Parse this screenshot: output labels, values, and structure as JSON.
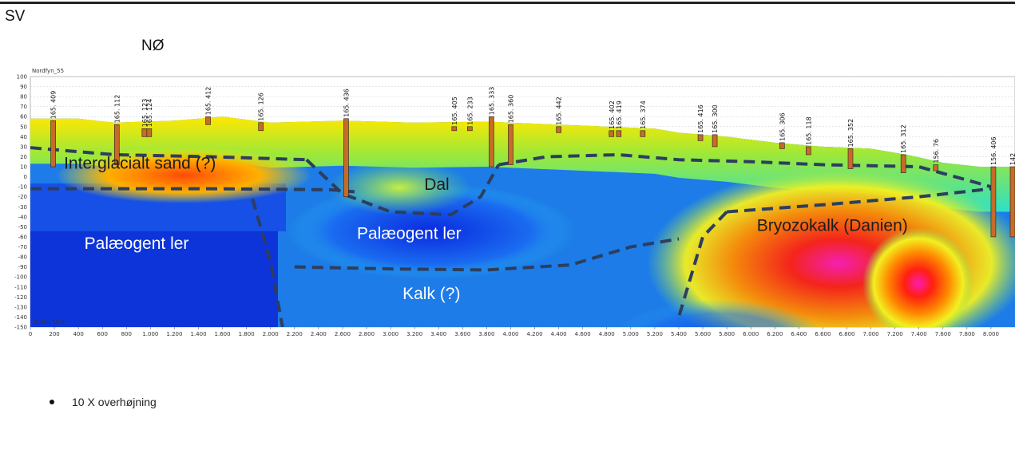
{
  "header": {
    "left_direction": "SV",
    "right_direction": "NØ"
  },
  "footnote": "10 X overhøjning",
  "chart_data": {
    "type": "heatmap",
    "title": "Nordfyn_55",
    "scale_label": "Scale: 10.0",
    "xlim": [
      0,
      8200
    ],
    "ylim": [
      -150,
      100
    ],
    "x_ticks": [
      0,
      200,
      400,
      600,
      800,
      1000,
      1200,
      1400,
      1600,
      1800,
      2000,
      2200,
      2400,
      2600,
      2800,
      3000,
      3200,
      3400,
      3600,
      3800,
      4000,
      4200,
      4400,
      4600,
      4800,
      5000,
      5200,
      5400,
      5600,
      5800,
      6000,
      6200,
      6400,
      6600,
      6800,
      7000,
      7200,
      7400,
      7600,
      7800,
      8000
    ],
    "x_tick_labels": [
      "0",
      "200",
      "400",
      "600",
      "800",
      "1.000",
      "1.200",
      "1.400",
      "1.600",
      "1.800",
      "2.000",
      "2.200",
      "2.400",
      "2.600",
      "2.800",
      "3.000",
      "3.200",
      "3.400",
      "3.600",
      "3.800",
      "4.000",
      "4.200",
      "4.400",
      "4.600",
      "4.800",
      "5.000",
      "5.200",
      "5.400",
      "5.600",
      "5.800",
      "6.000",
      "6.200",
      "6.400",
      "6.600",
      "6.800",
      "7.000",
      "7.200",
      "7.400",
      "7.600",
      "7.800",
      "8.000"
    ],
    "y_ticks": [
      100,
      90,
      80,
      70,
      60,
      50,
      40,
      30,
      20,
      10,
      0,
      -10,
      -20,
      -30,
      -40,
      -50,
      -60,
      -70,
      -80,
      -90,
      -100,
      -110,
      -120,
      -130,
      -140,
      -150
    ],
    "grid": true,
    "terrain_profile": [
      [
        0,
        58
      ],
      [
        400,
        58
      ],
      [
        700,
        54
      ],
      [
        1200,
        56
      ],
      [
        1600,
        60
      ],
      [
        2000,
        54
      ],
      [
        2600,
        56
      ],
      [
        3200,
        54
      ],
      [
        3800,
        55
      ],
      [
        4400,
        52
      ],
      [
        4800,
        50
      ],
      [
        5200,
        48
      ],
      [
        5400,
        44
      ],
      [
        5800,
        40
      ],
      [
        6200,
        34
      ],
      [
        6600,
        30
      ],
      [
        7000,
        28
      ],
      [
        7300,
        22
      ],
      [
        7600,
        14
      ],
      [
        7900,
        10
      ],
      [
        8200,
        10
      ]
    ],
    "boreholes": [
      {
        "label": "165. 409",
        "x": 190,
        "top": 56,
        "bottom": 10
      },
      {
        "label": "165. 112",
        "x": 720,
        "top": 52,
        "bottom": 12
      },
      {
        "label": "165. 123",
        "x": 950,
        "top": 48,
        "bottom": 40
      },
      {
        "label": "165. 124",
        "x": 990,
        "top": 48,
        "bottom": 40
      },
      {
        "label": "165. 412",
        "x": 1480,
        "top": 60,
        "bottom": 52
      },
      {
        "label": "165. 126",
        "x": 1920,
        "top": 54,
        "bottom": 46
      },
      {
        "label": "165. 436",
        "x": 2630,
        "top": 58,
        "bottom": -20
      },
      {
        "label": "165. 405",
        "x": 3530,
        "top": 50,
        "bottom": 46
      },
      {
        "label": "165. 233",
        "x": 3660,
        "top": 50,
        "bottom": 46
      },
      {
        "label": "165. 333",
        "x": 3840,
        "top": 60,
        "bottom": 10
      },
      {
        "label": "165. 360",
        "x": 4000,
        "top": 52,
        "bottom": 12
      },
      {
        "label": "165. 442",
        "x": 4400,
        "top": 50,
        "bottom": 44
      },
      {
        "label": "165. 402",
        "x": 4840,
        "top": 46,
        "bottom": 40
      },
      {
        "label": "165. 419",
        "x": 4900,
        "top": 46,
        "bottom": 40
      },
      {
        "label": "165. 374",
        "x": 5100,
        "top": 46,
        "bottom": 40
      },
      {
        "label": "165. 416",
        "x": 5580,
        "top": 42,
        "bottom": 36
      },
      {
        "label": "165. 300",
        "x": 5700,
        "top": 42,
        "bottom": 30
      },
      {
        "label": "165. 306",
        "x": 6260,
        "top": 34,
        "bottom": 28
      },
      {
        "label": "165. 118",
        "x": 6480,
        "top": 30,
        "bottom": 22
      },
      {
        "label": "165. 352",
        "x": 6830,
        "top": 28,
        "bottom": 8
      },
      {
        "label": "165. 312",
        "x": 7270,
        "top": 22,
        "bottom": 4
      },
      {
        "label": "156. 76",
        "x": 7540,
        "top": 12,
        "bottom": 6
      },
      {
        "label": "156. 406",
        "x": 8020,
        "top": 10,
        "bottom": -60
      },
      {
        "label": "142",
        "x": 8180,
        "top": 10,
        "bottom": -60
      }
    ],
    "interpretation_lines": [
      {
        "name": "interglacial-top",
        "points": [
          [
            0,
            29
          ],
          [
            700,
            22
          ],
          [
            1500,
            20
          ],
          [
            2300,
            17
          ]
        ]
      },
      {
        "name": "valley-outline",
        "points": [
          [
            2300,
            17
          ],
          [
            2600,
            -17
          ],
          [
            3000,
            -35
          ],
          [
            3500,
            -38
          ],
          [
            3750,
            -20
          ],
          [
            3900,
            12
          ]
        ]
      },
      {
        "name": "paleogene-top",
        "points": [
          [
            0,
            -12
          ],
          [
            1500,
            -12
          ],
          [
            2500,
            -13
          ],
          [
            2700,
            -15
          ]
        ]
      },
      {
        "name": "valley-east",
        "points": [
          [
            3900,
            12
          ],
          [
            4300,
            20
          ],
          [
            4900,
            22
          ],
          [
            5400,
            17
          ],
          [
            6000,
            15
          ],
          [
            6600,
            12
          ],
          [
            7400,
            10
          ],
          [
            8000,
            -10
          ]
        ]
      },
      {
        "name": "fault-west",
        "points": [
          [
            1850,
            -22
          ],
          [
            2000,
            -85
          ],
          [
            2100,
            -150
          ]
        ]
      },
      {
        "name": "kalk-top",
        "points": [
          [
            2200,
            -90
          ],
          [
            3000,
            -92
          ],
          [
            3800,
            -93
          ],
          [
            4500,
            -88
          ],
          [
            5000,
            -70
          ],
          [
            5400,
            -62
          ]
        ]
      },
      {
        "name": "fault-east",
        "points": [
          [
            5800,
            -35
          ],
          [
            5600,
            -60
          ],
          [
            5400,
            -140
          ]
        ]
      },
      {
        "name": "danien-top",
        "points": [
          [
            5800,
            -35
          ],
          [
            6600,
            -28
          ],
          [
            7400,
            -20
          ],
          [
            8000,
            -12
          ]
        ]
      }
    ],
    "annotations": [
      {
        "text": "Interglacialt sand (?)",
        "x": 280,
        "y": 8,
        "color": "#1c1c1c"
      },
      {
        "text": "Dal",
        "x": 3280,
        "y": -13,
        "color": "#1c1c1c"
      },
      {
        "text": "Palæogent ler",
        "x": 450,
        "y": -72,
        "color": "#ffffff"
      },
      {
        "text": "Palæogent ler",
        "x": 2720,
        "y": -62,
        "color": "#ffffff"
      },
      {
        "text": "Kalk (?)",
        "x": 3100,
        "y": -122,
        "color": "#ffffff"
      },
      {
        "text": "Bryozokalk (Danien)",
        "x": 6050,
        "y": -54,
        "color": "#1c1c1c"
      }
    ],
    "colors": {
      "line": "#2d3e5e",
      "low_resistivity": "#1540e0",
      "high_resistivity": "#e8200c"
    }
  }
}
